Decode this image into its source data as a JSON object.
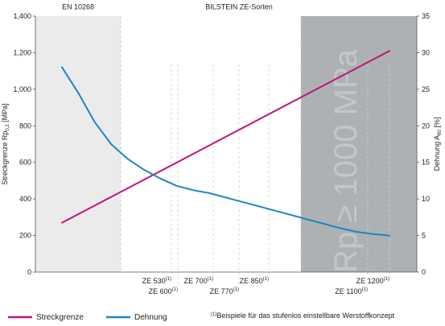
{
  "chart_data": {
    "type": "line",
    "header": {
      "left": "EN 10268",
      "center": "BILSTEIN ZE-Sorten"
    },
    "ylabel_left": {
      "main": "Streckgrenze Rp",
      "sub": "0,2",
      "unit": " [MPa]"
    },
    "ylabel_right": {
      "main": "Dehnung A",
      "sub": "80",
      "unit": " [%]"
    },
    "y_left": {
      "ylim": [
        0,
        1400
      ],
      "ticks": [
        0,
        200,
        400,
        600,
        800,
        1000,
        1200,
        1400
      ],
      "tick_labels": [
        "0",
        "200",
        "400",
        "600",
        "800",
        "1,000",
        "1,200",
        "1,400"
      ]
    },
    "y_right": {
      "ylim": [
        0,
        35
      ],
      "ticks": [
        0,
        5,
        10,
        15,
        20,
        25,
        30,
        35
      ],
      "tick_labels": [
        "0",
        "5",
        "10",
        "15",
        "20",
        "25",
        "30",
        "35"
      ]
    },
    "x_grades": [
      {
        "label": "ZE 530",
        "sup": "(1)",
        "row": 1
      },
      {
        "label": "ZE 600",
        "sup": "(1)",
        "row": 2
      },
      {
        "label": "ZE 700",
        "sup": "(1)",
        "row": 1
      },
      {
        "label": "ZE 770",
        "sup": "(1)",
        "row": 2
      },
      {
        "label": "ZE 850",
        "sup": "(1)",
        "row": 1
      },
      {
        "label": "ZE 1100",
        "sup": "(1)",
        "row": 2
      },
      {
        "label": "ZE 1200",
        "sup": "(1)",
        "row": 1
      }
    ],
    "regions": [
      {
        "name": "EN 10268",
        "color": "#ebebeb"
      },
      {
        "name": "Rp ≥ 1000 MPa",
        "color": "#aeb1b3",
        "watermark": "Rp ≥ 1000 MPa"
      }
    ],
    "series": [
      {
        "name": "Streckgrenze",
        "axis": "left",
        "color": "#c0137b",
        "values": [
          [
            0,
            270
          ],
          [
            1,
            1210
          ]
        ]
      },
      {
        "name": "Dehnung",
        "axis": "right",
        "color": "#1e86c0",
        "values": [
          [
            0,
            28
          ],
          [
            0.05,
            24.5
          ],
          [
            0.1,
            20.5
          ],
          [
            0.15,
            17.5
          ],
          [
            0.2,
            15.5
          ],
          [
            0.25,
            14
          ],
          [
            0.3,
            12.8
          ],
          [
            0.35,
            11.8
          ],
          [
            0.4,
            11.2
          ],
          [
            0.45,
            10.8
          ],
          [
            0.5,
            10.2
          ],
          [
            0.55,
            9.6
          ],
          [
            0.6,
            9.0
          ],
          [
            0.65,
            8.4
          ],
          [
            0.7,
            7.8
          ],
          [
            0.75,
            7.2
          ],
          [
            0.8,
            6.6
          ],
          [
            0.85,
            6.0
          ],
          [
            0.9,
            5.5
          ],
          [
            0.95,
            5.2
          ],
          [
            1,
            5.0
          ]
        ]
      }
    ],
    "legend": {
      "placement": "bottom"
    },
    "footnote": {
      "sup": "(1)",
      "text": "Beispiele für das stufenlos einstellbare Werstoffkonzept"
    }
  }
}
